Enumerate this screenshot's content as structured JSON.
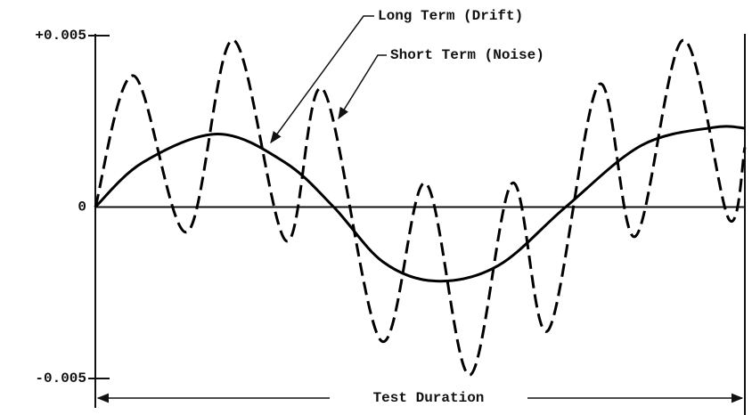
{
  "chart_data": {
    "type": "line",
    "xlabel": "Test Duration",
    "xlim": [
      0,
      1
    ],
    "ylim": [
      -0.005,
      0.005
    ],
    "yticks": [
      {
        "value": 0.005,
        "label": "+0.005"
      },
      0,
      -0.005
    ],
    "grid": false,
    "series": [
      {
        "name": "Long Term (Drift)",
        "color": "#000000",
        "style": "solid",
        "x": [
          0,
          0.073,
          0.189,
          0.292,
          0.367,
          0.443,
          0.525,
          0.621,
          0.724,
          0.841,
          0.951,
          1.0
        ],
        "values": [
          0,
          0.0013,
          0.00213,
          0.0013,
          0,
          -0.0016,
          -0.00216,
          -0.0017,
          0,
          0.0018,
          0.00232,
          0.0023
        ]
      },
      {
        "name": "Short Term (Noise)",
        "color": "#000000",
        "style": "dashed",
        "x": [
          0,
          0.059,
          0.141,
          0.212,
          0.294,
          0.35,
          0.44,
          0.508,
          0.576,
          0.642,
          0.697,
          0.775,
          0.831,
          0.905,
          0.975,
          1.0
        ],
        "values": [
          0,
          0.00383,
          -0.00073,
          0.00487,
          -0.00099,
          0.00344,
          -0.0039,
          0.0007,
          -0.0049,
          0.0007,
          -0.0036,
          0.00357,
          -0.00086,
          0.00487,
          -0.00034,
          0.00174
        ]
      }
    ]
  }
}
